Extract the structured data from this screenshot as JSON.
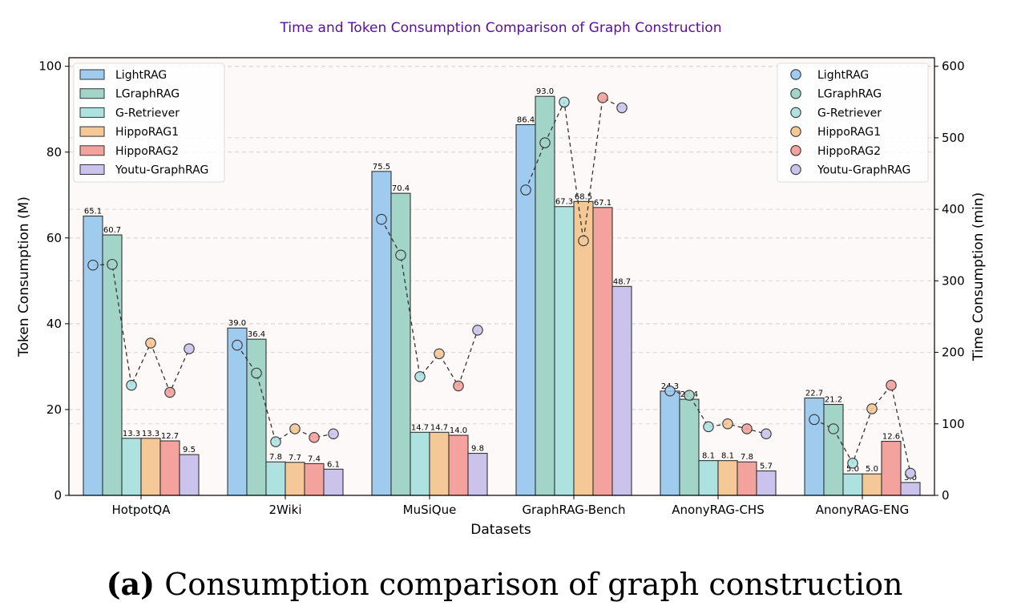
{
  "chart_data": {
    "type": "bar",
    "title": "Time and Token Consumption Comparison of Graph Construction",
    "xlabel": "Datasets",
    "ylabel": "Token Consumption (M)",
    "y2label": "Time Consumption (min)",
    "ylim": [
      0,
      102
    ],
    "y2lim": [
      0,
      612
    ],
    "yticks": [
      0,
      20,
      40,
      60,
      80,
      100
    ],
    "y2ticks": [
      0,
      100,
      200,
      300,
      400,
      500,
      600
    ],
    "categories": [
      "HotpotQA",
      "2Wiki",
      "MuSiQue",
      "GraphRAG-Bench",
      "AnonyRAG-CHS",
      "AnonyRAG-ENG"
    ],
    "series": [
      {
        "name": "LightRAG",
        "color": "#9fcbee",
        "values": [
          65.1,
          39.0,
          75.5,
          86.4,
          24.3,
          22.7
        ],
        "labels": [
          "65.1",
          "39.0",
          "75.5",
          "86.4",
          "24.3",
          "22.7"
        ],
        "time": [
          322,
          210,
          386,
          427,
          146,
          106
        ]
      },
      {
        "name": "LGraphRAG",
        "color": "#a3d4c8",
        "values": [
          60.7,
          36.4,
          70.4,
          93.0,
          22.4,
          21.2
        ],
        "labels": [
          "60.7",
          "36.4",
          "70.4",
          "93.0",
          "22.4",
          "21.2"
        ],
        "time": [
          323,
          171,
          336,
          493,
          140,
          93
        ]
      },
      {
        "name": "G-Retriever",
        "color": "#ade2e1",
        "values": [
          13.3,
          7.8,
          14.7,
          67.3,
          8.1,
          5.0
        ],
        "labels": [
          "13.3",
          "7.8",
          "14.7",
          "67.3",
          "8.1",
          "5.0"
        ],
        "time": [
          154,
          75,
          166,
          550,
          96,
          45
        ]
      },
      {
        "name": "HippoRAG1",
        "color": "#f5c897",
        "values": [
          13.3,
          7.7,
          14.7,
          68.5,
          8.1,
          5.0
        ],
        "labels": [
          "13.3",
          "7.7",
          "14.7",
          "68.5",
          "8.1",
          "5.0"
        ],
        "time": [
          213,
          93,
          198,
          356,
          100,
          121
        ]
      },
      {
        "name": "HippoRAG2",
        "color": "#f3a29d",
        "values": [
          12.7,
          7.4,
          14.0,
          67.1,
          7.8,
          12.6
        ],
        "labels": [
          "12.7",
          "7.4",
          "14.0",
          "67.1",
          "7.8",
          "12.6"
        ],
        "time": [
          144,
          81,
          153,
          556,
          93,
          154
        ]
      },
      {
        "name": "Youtu-GraphRAG",
        "color": "#cbc3ec",
        "values": [
          9.5,
          6.1,
          9.8,
          48.7,
          5.7,
          3.0
        ],
        "labels": [
          "9.5",
          "6.1",
          "9.8",
          "48.7",
          "5.7",
          "3.0"
        ],
        "time": [
          205,
          86,
          231,
          542,
          86,
          31
        ]
      }
    ],
    "grid": true,
    "legend_left": "top-left",
    "legend_right": "top-right"
  },
  "caption": {
    "tag": "(a)",
    "text": " Consumption comparison of graph construction"
  }
}
